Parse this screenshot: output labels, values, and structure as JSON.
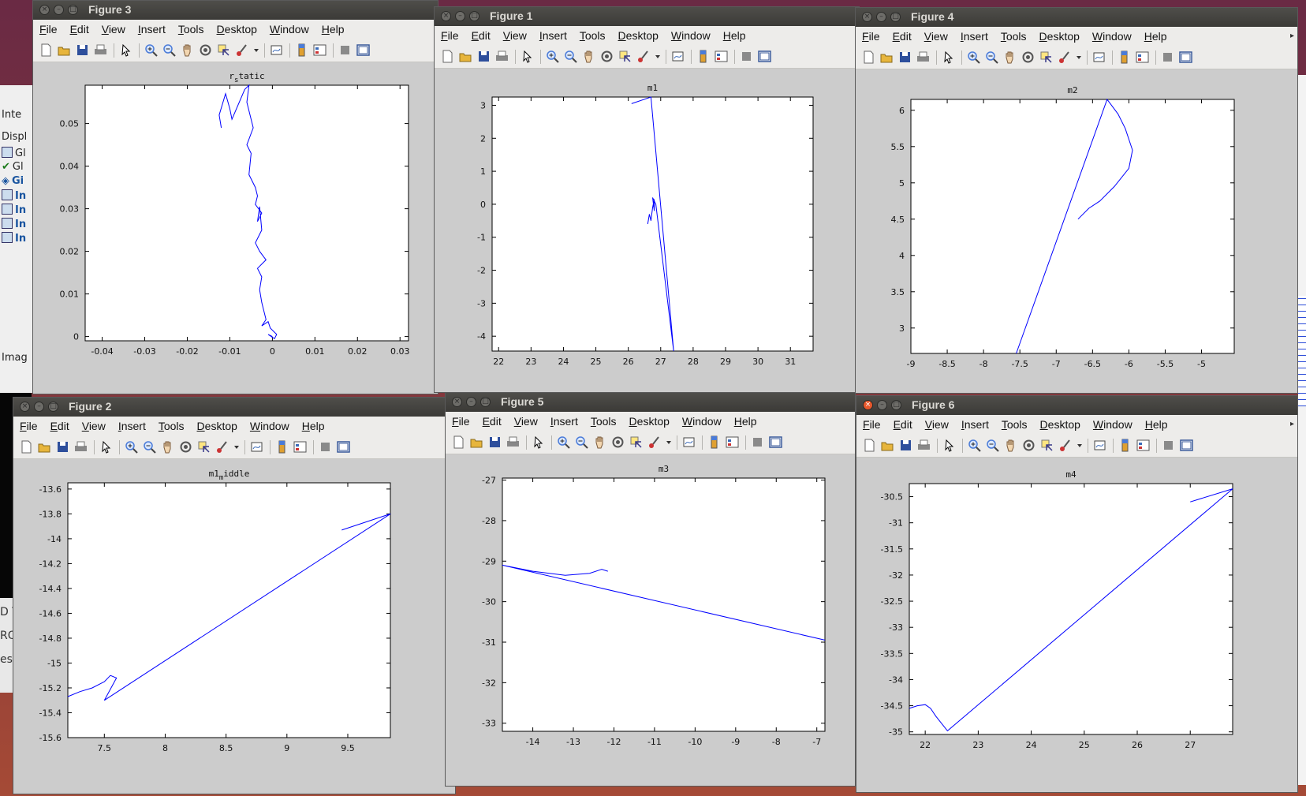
{
  "background_app": {
    "rows": [
      "Inte",
      "Displ",
      "Gl",
      "Gl",
      "Gi",
      "In",
      "In",
      "In",
      "In"
    ],
    "bottom_label": "Imag",
    "lower_rows": [
      "D T",
      "ROS",
      "es"
    ]
  },
  "menu": [
    "File",
    "Edit",
    "View",
    "Insert",
    "Tools",
    "Desktop",
    "Window",
    "Help"
  ],
  "figures": [
    {
      "id": "fig3",
      "window_title": "Figure 3",
      "plot_title": "r_static",
      "chart_data": {
        "type": "line",
        "xlim": [
          -0.044,
          0.032
        ],
        "ylim": [
          -0.001,
          0.059
        ],
        "xticks": [
          -0.04,
          -0.03,
          -0.02,
          -0.01,
          0,
          0.01,
          0.02,
          0.03
        ],
        "xtick_labels": [
          "-0.04",
          "-0.03",
          "-0.02",
          "-0.01",
          "0",
          "0.01",
          "0.02",
          "0.03"
        ],
        "yticks": [
          0,
          0.01,
          0.02,
          0.03,
          0.04,
          0.05
        ],
        "ytick_labels": [
          "0",
          "0.01",
          "0.02",
          "0.03",
          "0.04",
          "0.05"
        ],
        "series": [
          {
            "color": "#0000ff",
            "x": [
              -0.012,
              -0.0125,
              -0.011,
              -0.01,
              -0.0095,
              -0.0065,
              -0.0055,
              -0.006,
              -0.0045,
              -0.006,
              -0.005,
              -0.0055,
              -0.004,
              -0.0035,
              -0.004,
              -0.0025,
              -0.0035,
              -0.003,
              -0.0025,
              -0.004,
              -0.003,
              -0.0015,
              -0.0035,
              -0.0025,
              -0.003,
              -0.0025,
              -0.002,
              -0.0015,
              -0.0025,
              -0.001,
              -0.0005,
              0.001,
              0.0005,
              -0.001,
              0
            ],
            "y": [
              0.049,
              0.052,
              0.057,
              0.0535,
              0.051,
              0.058,
              0.059,
              0.055,
              0.049,
              0.045,
              0.043,
              0.038,
              0.035,
              0.033,
              0.031,
              0.029,
              0.027,
              0.0305,
              0.025,
              0.022,
              0.02,
              0.018,
              0.016,
              0.014,
              0.011,
              0.008,
              0.006,
              0.004,
              0.0025,
              0.0035,
              0.002,
              0.0005,
              -0.0005,
              0.0005,
              0
            ]
          }
        ]
      }
    },
    {
      "id": "fig1",
      "window_title": "Figure 1",
      "plot_title": "m1",
      "chart_data": {
        "type": "line",
        "xlim": [
          21.8,
          31.7
        ],
        "ylim": [
          -4.45,
          3.25
        ],
        "xticks": [
          22,
          23,
          24,
          25,
          26,
          27,
          28,
          29,
          30,
          31
        ],
        "xtick_labels": [
          "22",
          "23",
          "24",
          "25",
          "26",
          "27",
          "28",
          "29",
          "30",
          "31"
        ],
        "yticks": [
          -4,
          -3,
          -2,
          -1,
          0,
          1,
          2,
          3
        ],
        "ytick_labels": [
          "-4",
          "-3",
          "-2",
          "-1",
          "0",
          "1",
          "2",
          "3"
        ],
        "series": [
          {
            "color": "#0000ff",
            "x": [
              26.6,
              26.65,
              26.7,
              26.75,
              26.8,
              26.8,
              26.75,
              26.85,
              27.4,
              26.7,
              26.1
            ],
            "y": [
              -0.6,
              -0.3,
              -0.5,
              -0.1,
              0.15,
              -0.2,
              0.2,
              0.0,
              -4.45,
              3.25,
              3.05
            ]
          }
        ]
      }
    },
    {
      "id": "fig4",
      "window_title": "Figure 4",
      "plot_title": "m2",
      "chart_data": {
        "type": "line",
        "xlim": [
          -9.0,
          -4.55
        ],
        "ylim": [
          2.65,
          6.15
        ],
        "xticks": [
          -9,
          -8.5,
          -8,
          -7.5,
          -7,
          -6.5,
          -6,
          -5.5,
          -5
        ],
        "xtick_labels": [
          "-9",
          "-8.5",
          "-8",
          "-7.5",
          "-7",
          "-6.5",
          "-6",
          "-5.5",
          "-5"
        ],
        "yticks": [
          3,
          3.5,
          4,
          4.5,
          5,
          5.5,
          6
        ],
        "ytick_labels": [
          "3",
          "3.5",
          "4",
          "4.5",
          "5",
          "5.5",
          "6"
        ],
        "series": [
          {
            "color": "#0000ff",
            "x": [
              -7.55,
              -6.3,
              -6.15,
              -6.05,
              -5.95,
              -6.0,
              -6.2,
              -6.4,
              -6.55,
              -6.7
            ],
            "y": [
              2.65,
              6.15,
              5.95,
              5.75,
              5.45,
              5.2,
              4.95,
              4.75,
              4.65,
              4.5
            ]
          }
        ]
      }
    },
    {
      "id": "fig2",
      "window_title": "Figure 2",
      "plot_title": "m1_middle",
      "chart_data": {
        "type": "line",
        "xlim": [
          7.2,
          9.85
        ],
        "ylim": [
          -15.6,
          -13.55
        ],
        "xticks": [
          7.5,
          8,
          8.5,
          9,
          9.5
        ],
        "xtick_labels": [
          "7.5",
          "8",
          "8.5",
          "9",
          "9.5"
        ],
        "yticks": [
          -15.6,
          -15.4,
          -15.2,
          -15,
          -14.8,
          -14.6,
          -14.4,
          -14.2,
          -14,
          -13.8,
          -13.6
        ],
        "ytick_labels": [
          "-15.6",
          "-15.4",
          "-15.2",
          "-15",
          "-14.8",
          "-14.6",
          "-14.4",
          "-14.2",
          "-14",
          "-13.8",
          "-13.6"
        ],
        "series": [
          {
            "color": "#0000ff",
            "x": [
              7.2,
              7.3,
              7.4,
              7.5,
              7.55,
              7.6,
              7.5,
              9.85,
              9.45
            ],
            "y": [
              -15.27,
              -15.23,
              -15.2,
              -15.15,
              -15.1,
              -15.12,
              -15.3,
              -13.8,
              -13.93
            ]
          }
        ]
      }
    },
    {
      "id": "fig5",
      "window_title": "Figure 5",
      "plot_title": "m3",
      "chart_data": {
        "type": "line",
        "xlim": [
          -14.75,
          -6.8
        ],
        "ylim": [
          -33.2,
          -26.95
        ],
        "xticks": [
          -14,
          -13,
          -12,
          -11,
          -10,
          -9,
          -8,
          -7
        ],
        "xtick_labels": [
          "-14",
          "-13",
          "-12",
          "-11",
          "-10",
          "-9",
          "-8",
          "-7"
        ],
        "yticks": [
          -33,
          -32,
          -31,
          -30,
          -29,
          -28,
          -27
        ],
        "ytick_labels": [
          "-33",
          "-32",
          "-31",
          "-30",
          "-29",
          "-28",
          "-27"
        ],
        "series": [
          {
            "color": "#0000ff",
            "x": [
              -12.15,
              -12.3,
              -12.6,
              -13.2,
              -14.0,
              -14.75,
              -6.8
            ],
            "y": [
              -29.25,
              -29.2,
              -29.3,
              -29.35,
              -29.25,
              -29.1,
              -30.95
            ]
          }
        ]
      }
    },
    {
      "id": "fig6",
      "window_title": "Figure 6",
      "plot_title": "m4",
      "chart_data": {
        "type": "line",
        "xlim": [
          21.7,
          27.8
        ],
        "ylim": [
          -35.05,
          -30.25
        ],
        "xticks": [
          22,
          23,
          24,
          25,
          26,
          27
        ],
        "xtick_labels": [
          "22",
          "23",
          "24",
          "25",
          "26",
          "27"
        ],
        "yticks": [
          -35,
          -34.5,
          -34,
          -33.5,
          -33,
          -32.5,
          -32,
          -31.5,
          -31,
          -30.5
        ],
        "ytick_labels": [
          "-35",
          "-34.5",
          "-34",
          "-33.5",
          "-33",
          "-32.5",
          "-32",
          "-31.5",
          "-31",
          "-30.5"
        ],
        "series": [
          {
            "color": "#0000ff",
            "x": [
              21.7,
              21.85,
              22.0,
              22.1,
              22.2,
              22.42,
              27.8,
              27.0
            ],
            "y": [
              -34.55,
              -34.5,
              -34.48,
              -34.55,
              -34.7,
              -34.98,
              -30.35,
              -30.6
            ]
          }
        ]
      }
    }
  ]
}
